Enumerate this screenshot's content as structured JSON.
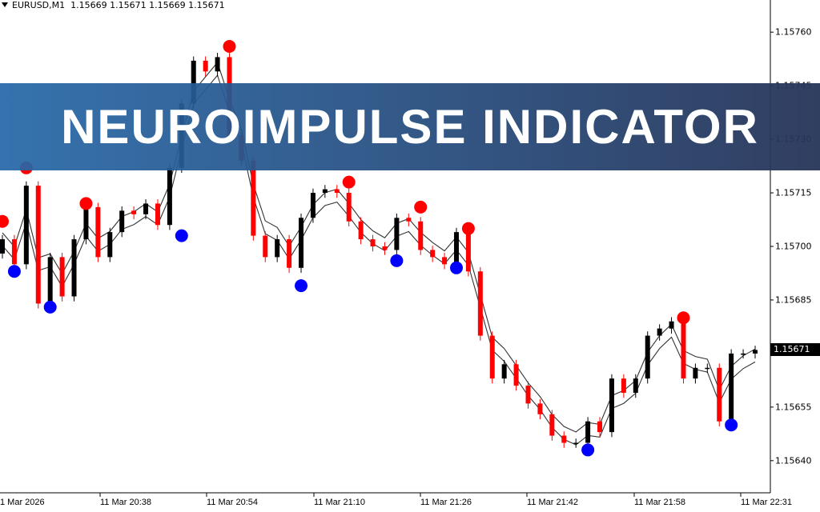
{
  "header": {
    "symbol": "EURUSD,M1",
    "ohlc": "1.15669 1.15671 1.15669 1.15671"
  },
  "banner": {
    "title": "NEUROIMPULSE INDICATOR"
  },
  "colors": {
    "bull": "#000000",
    "bear": "#ff0000",
    "band": "#000000",
    "peak_signal": "#ff0000",
    "trough_signal": "#0000ff",
    "banner_left": "#2668a8",
    "banner_right": "#263458"
  },
  "chart_data": {
    "type": "candlestick",
    "ylim": [
      1.15631,
      1.15769
    ],
    "y_ticks": [
      "1.15760",
      "1.15745",
      "1.15730",
      "1.15715",
      "1.15700",
      "1.15685",
      "1.15655",
      "1.15640"
    ],
    "y_tick_values": [
      1.1576,
      1.15745,
      1.1573,
      1.15715,
      1.157,
      1.15685,
      1.15655,
      1.1564
    ],
    "x_ticks": [
      "1 Mar 2026",
      "11 Mar 20:38",
      "11 Mar 20:54",
      "11 Mar 21:10",
      "11 Mar 21:26",
      "11 Mar 21:42",
      "11 Mar 21:58",
      "11 Mar 22:31"
    ],
    "current_price": "1.15671",
    "first_open": 1.15698,
    "closes": [
      1.15702,
      1.15695,
      1.15717,
      1.15684,
      1.15697,
      1.15686,
      1.15702,
      1.15711,
      1.15697,
      1.15704,
      1.1571,
      1.15709,
      1.15712,
      1.15706,
      1.15722,
      1.1574,
      1.15752,
      1.15749,
      1.15753,
      1.15731,
      1.15724,
      1.15703,
      1.15697,
      1.15702,
      1.15694,
      1.15708,
      1.15715,
      1.15716,
      1.15715,
      1.15707,
      1.15702,
      1.157,
      1.15699,
      1.15708,
      1.15707,
      1.15699,
      1.15697,
      1.15695,
      1.15704,
      1.15693,
      1.15675,
      1.15663,
      1.15667,
      1.15661,
      1.15656,
      1.15653,
      1.15647,
      1.15645,
      1.15645,
      1.15651,
      1.15648,
      1.15663,
      1.15659,
      1.15663,
      1.15675,
      1.15677,
      1.15679,
      1.15663,
      1.15666,
      1.15666,
      1.15651,
      1.1567,
      1.1567,
      1.15671
    ],
    "peak_signals": [
      {
        "i": 0,
        "p": 1.15707
      },
      {
        "i": 2,
        "p": 1.15722
      },
      {
        "i": 7,
        "p": 1.15712
      },
      {
        "i": 19,
        "p": 1.15756
      },
      {
        "i": 29,
        "p": 1.15718
      },
      {
        "i": 35,
        "p": 1.15711
      },
      {
        "i": 39,
        "p": 1.15705
      },
      {
        "i": 57,
        "p": 1.1568
      }
    ],
    "trough_signals": [
      {
        "i": 1,
        "p": 1.15693
      },
      {
        "i": 4,
        "p": 1.15683
      },
      {
        "i": 15,
        "p": 1.15703
      },
      {
        "i": 25,
        "p": 1.15689
      },
      {
        "i": 33,
        "p": 1.15696
      },
      {
        "i": 38,
        "p": 1.15694
      },
      {
        "i": 49,
        "p": 1.15643
      },
      {
        "i": 61,
        "p": 1.1565
      }
    ]
  }
}
